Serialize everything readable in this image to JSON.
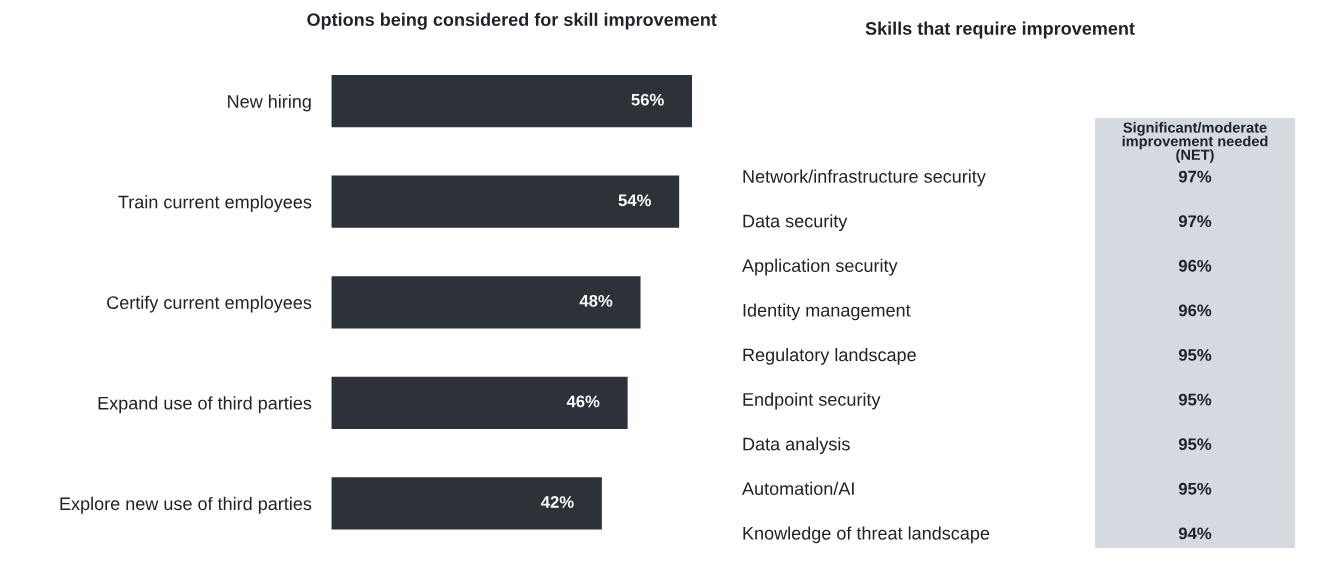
{
  "chart_data": [
    {
      "type": "bar",
      "title": "Options being considered for skill improvement",
      "orientation": "horizontal",
      "categories": [
        "New hiring",
        "Train current employees",
        "Certify current employees",
        "Expand use of third parties",
        "Explore new use of third parties"
      ],
      "values": [
        56,
        54,
        48,
        46,
        42
      ],
      "color": "#2d3239",
      "data_labels": true,
      "value_labels": [
        "56%",
        "54%",
        "48%",
        "46%",
        "42%"
      ]
    },
    {
      "type": "other",
      "title": "Skills that require improvement",
      "annotations": [
        "Significant/moderate improvement needed (NET)"
      ],
      "categories": [
        "Network/infrastructure security",
        "Data security",
        "Application security",
        "Identity management",
        "Regulatory landscape",
        "Endpoint security",
        "Data analysis",
        "Automation/AI",
        "Knowledge of threat landscape"
      ],
      "value_labels": [
        "97%",
        "97%",
        "96%",
        "96%",
        "95%",
        "95%",
        "95%",
        "95%",
        "94%"
      ],
      "color": "#d5d9e0"
    }
  ]
}
